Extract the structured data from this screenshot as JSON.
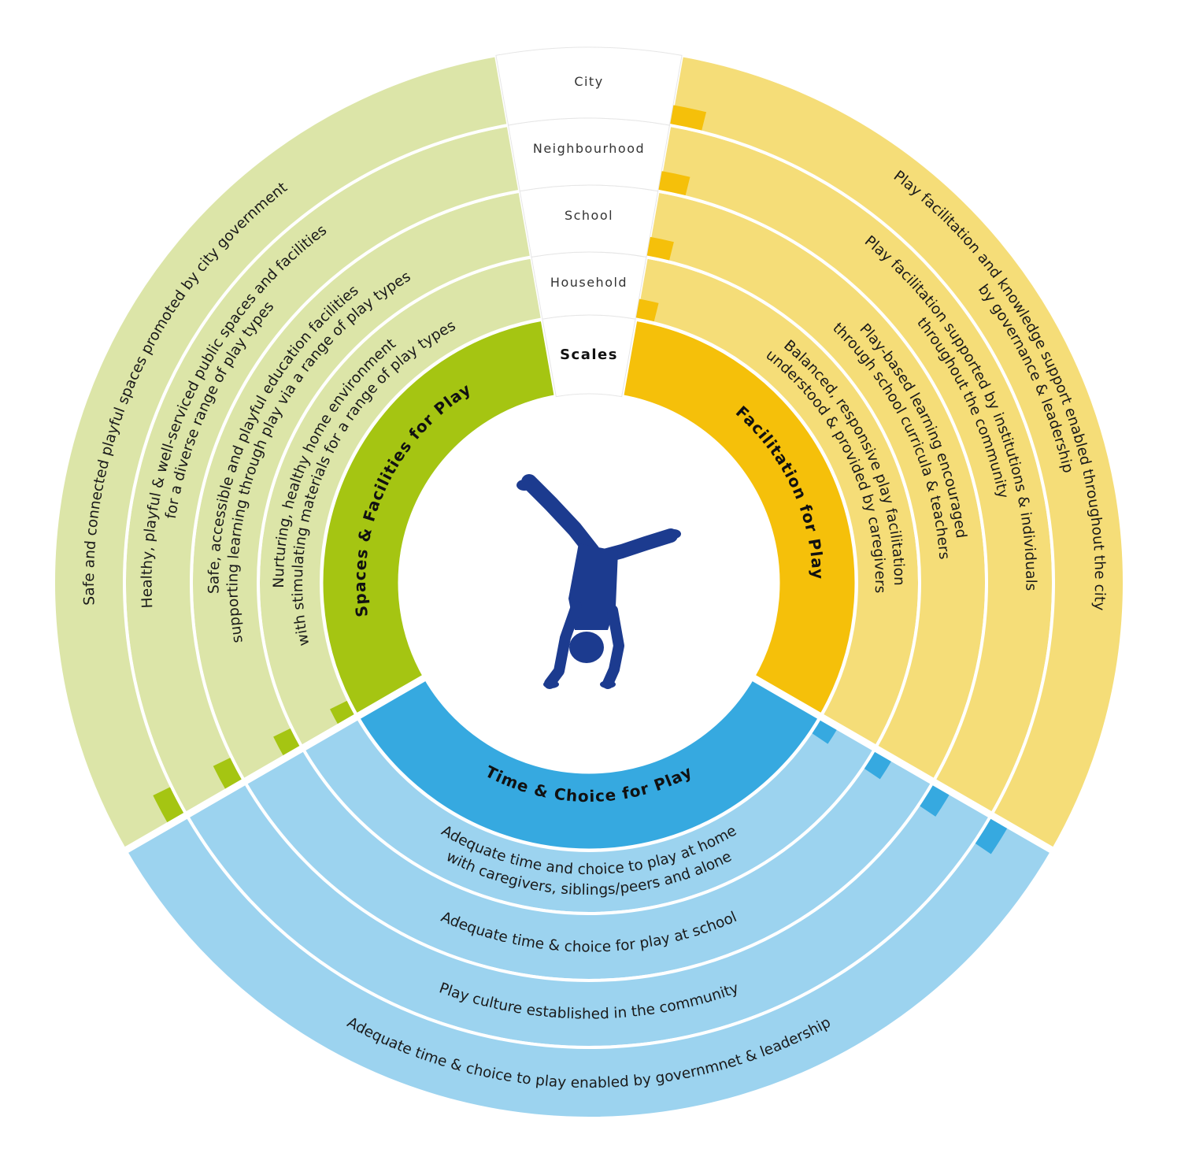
{
  "scales": {
    "title": "Scales",
    "levels": [
      "Household",
      "School",
      "Neighbourhood",
      "City"
    ]
  },
  "colors": {
    "green_light": "#dce5a8",
    "green_dark": "#a5c512",
    "yellow_light": "#f5dd78",
    "yellow_dark": "#f5c00a",
    "blue_light": "#9cd3ef",
    "blue_dark": "#36a9e0",
    "figure": "#1c3b8f"
  },
  "center_icon": "cartwheel-figure-icon",
  "sectors": [
    {
      "id": "spaces",
      "title": "Spaces & Facilities for Play",
      "rings": [
        [
          "Nurturing, healthy home environment",
          "with stimulating materials for a range of play types"
        ],
        [
          "Safe, accessible and playful education facilities",
          "supporting learning through play via a range of play types"
        ],
        [
          "Healthy, playful & well-serviced public spaces and facilities",
          "for a diverse range of play types"
        ],
        [
          "Safe and connected playful spaces promoted by city government"
        ]
      ]
    },
    {
      "id": "facilitation",
      "title": "Facilitation for Play",
      "rings": [
        [
          "Balanced, responsive play facilitation",
          "understood & provided by caregivers"
        ],
        [
          "Play-based learning encouraged",
          "through school curricula & teachers"
        ],
        [
          "Play facilitation supported by institutions & individuals",
          "throughout the community"
        ],
        [
          "Play facilitation and knowledge support enabled throughout the city",
          "by governance & leadership"
        ]
      ]
    },
    {
      "id": "time",
      "title": "Time & Choice for Play",
      "rings": [
        [
          "Adequate time and choice to play at home",
          "with caregivers, siblings/peers and alone"
        ],
        [
          "Adequate time & choice for play at school"
        ],
        [
          "Play culture established in the community"
        ],
        [
          "Adequate time & choice to play enabled by governmnet & leadership"
        ]
      ]
    }
  ]
}
